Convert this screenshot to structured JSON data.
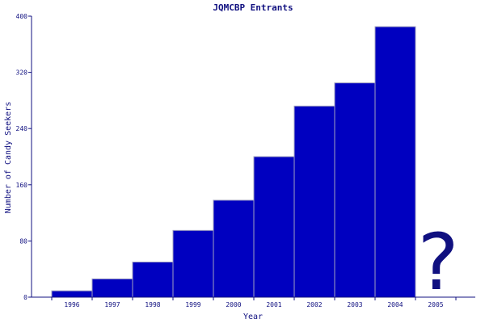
{
  "chart_data": {
    "type": "bar",
    "title": "JQMCBP Entrants",
    "xlabel": "Year",
    "ylabel": "Number of Candy Seekers",
    "categories": [
      "1996",
      "1997",
      "1998",
      "1999",
      "2000",
      "2001",
      "2002",
      "2003",
      "2004",
      "2005"
    ],
    "values": [
      9,
      26,
      50,
      95,
      138,
      200,
      272,
      305,
      385,
      null
    ],
    "ylim": [
      0,
      400
    ],
    "yticks": [
      0,
      80,
      160,
      240,
      320,
      400
    ],
    "grid": false,
    "bar_color": "#0000c0",
    "annotation": "?"
  }
}
